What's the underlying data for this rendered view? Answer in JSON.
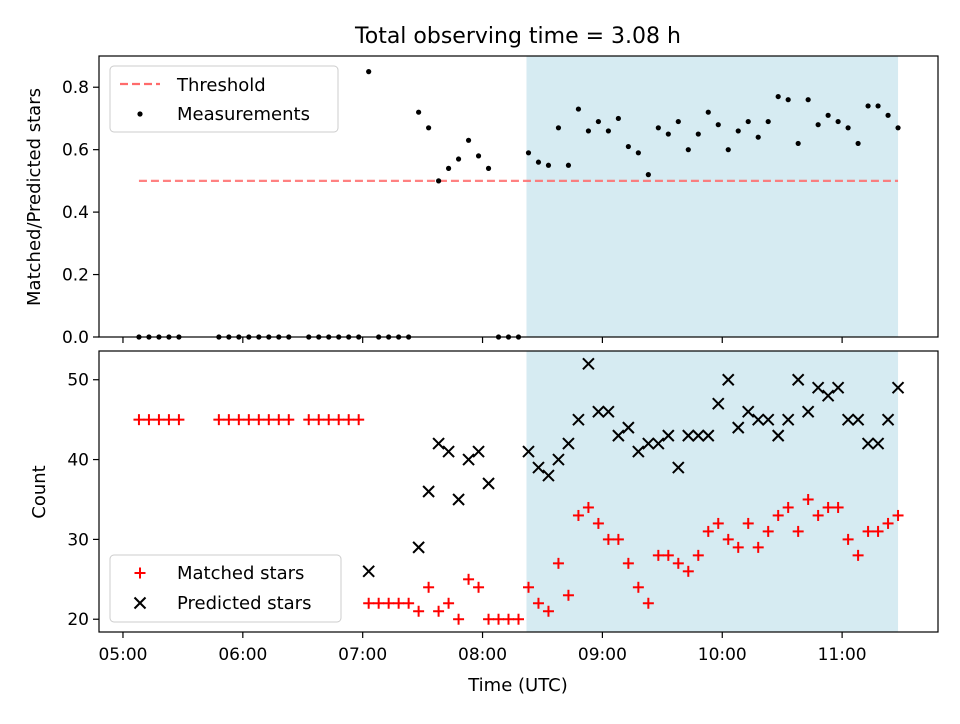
{
  "figure": {
    "title": "Total observing time = 3.08 h"
  },
  "chart_data": [
    {
      "type": "scatter",
      "panel": "top",
      "xlabel": "",
      "ylabel": "Matched/Predicted stars",
      "xlim": [
        "04:48",
        "11:48"
      ],
      "ylim": [
        0,
        0.9
      ],
      "yticks": [
        0.0,
        0.2,
        0.4,
        0.6,
        0.8
      ],
      "ytick_labels": [
        "0.0",
        "0.2",
        "0.4",
        "0.6",
        "0.8"
      ],
      "shaded_span": {
        "from": "08:22",
        "to": "11:28",
        "color": "#add8e6"
      },
      "legend_position": "upper left",
      "legend": [
        {
          "label": "Threshold",
          "style": "dashed-line",
          "color": "#ff6b6b"
        },
        {
          "label": "Measurements",
          "style": "dot",
          "color": "#000000"
        }
      ],
      "threshold": {
        "value": 0.5,
        "from": "05:08",
        "to": "11:28"
      },
      "measurements": {
        "x": [
          "05:08",
          "05:13",
          "05:18",
          "05:23",
          "05:28",
          "05:48",
          "05:53",
          "05:58",
          "06:03",
          "06:08",
          "06:13",
          "06:18",
          "06:23",
          "06:33",
          "06:38",
          "06:43",
          "06:48",
          "06:53",
          "06:58",
          "07:03",
          "07:08",
          "07:13",
          "07:18",
          "07:23",
          "07:28",
          "07:33",
          "07:38",
          "07:43",
          "07:48",
          "07:53",
          "07:58",
          "08:03",
          "08:08",
          "08:13",
          "08:18",
          "08:23",
          "08:28",
          "08:33",
          "08:38",
          "08:43",
          "08:48",
          "08:53",
          "08:58",
          "09:03",
          "09:08",
          "09:13",
          "09:18",
          "09:23",
          "09:28",
          "09:33",
          "09:38",
          "09:43",
          "09:48",
          "09:53",
          "09:58",
          "10:03",
          "10:08",
          "10:13",
          "10:18",
          "10:23",
          "10:28",
          "10:33",
          "10:38",
          "10:43",
          "10:48",
          "10:53",
          "10:58",
          "11:03",
          "11:08",
          "11:13",
          "11:18",
          "11:23",
          "11:28"
        ],
        "y": [
          0,
          0,
          0,
          0,
          0,
          0,
          0,
          0,
          0,
          0,
          0,
          0,
          0,
          0,
          0,
          0,
          0,
          0,
          0,
          0.85,
          0,
          0,
          0,
          0,
          0.72,
          0.67,
          0.5,
          0.54,
          0.57,
          0.63,
          0.58,
          0.54,
          0,
          0,
          0,
          0.59,
          0.56,
          0.55,
          0.67,
          0.55,
          0.73,
          0.66,
          0.69,
          0.66,
          0.7,
          0.61,
          0.59,
          0.52,
          0.67,
          0.65,
          0.69,
          0.6,
          0.65,
          0.72,
          0.68,
          0.6,
          0.66,
          0.69,
          0.64,
          0.69,
          0.77,
          0.76,
          0.62,
          0.76,
          0.68,
          0.71,
          0.69,
          0.67,
          0.62,
          0.74,
          0.74,
          0.71,
          0.67
        ]
      }
    },
    {
      "type": "scatter",
      "panel": "bottom",
      "xlabel": "Time (UTC)",
      "ylabel": "Count",
      "xlim": [
        "04:48",
        "11:48"
      ],
      "ylim": [
        18.4,
        53.6
      ],
      "yticks": [
        20,
        30,
        40,
        50
      ],
      "ytick_labels": [
        "20",
        "30",
        "40",
        "50"
      ],
      "xticks": [
        "05:00",
        "06:00",
        "07:00",
        "08:00",
        "09:00",
        "10:00",
        "11:00"
      ],
      "xtick_labels": [
        "05:00",
        "06:00",
        "07:00",
        "08:00",
        "09:00",
        "10:00",
        "11:00"
      ],
      "shaded_span": {
        "from": "08:22",
        "to": "11:28",
        "color": "#add8e6"
      },
      "legend_position": "lower left",
      "series": [
        {
          "name": "Matched stars",
          "marker": "plus",
          "color": "#ff0000",
          "x": [
            "05:08",
            "05:13",
            "05:18",
            "05:23",
            "05:28",
            "05:48",
            "05:53",
            "05:58",
            "06:03",
            "06:08",
            "06:13",
            "06:18",
            "06:23",
            "06:33",
            "06:38",
            "06:43",
            "06:48",
            "06:53",
            "06:58",
            "07:03",
            "07:08",
            "07:13",
            "07:18",
            "07:23",
            "07:28",
            "07:33",
            "07:38",
            "07:43",
            "07:48",
            "07:53",
            "07:58",
            "08:03",
            "08:08",
            "08:13",
            "08:18",
            "08:23",
            "08:28",
            "08:33",
            "08:38",
            "08:43",
            "08:48",
            "08:53",
            "08:58",
            "09:03",
            "09:08",
            "09:13",
            "09:18",
            "09:23",
            "09:28",
            "09:33",
            "09:38",
            "09:43",
            "09:48",
            "09:53",
            "09:58",
            "10:03",
            "10:08",
            "10:13",
            "10:18",
            "10:23",
            "10:28",
            "10:33",
            "10:38",
            "10:43",
            "10:48",
            "10:53",
            "10:58",
            "11:03",
            "11:08",
            "11:13",
            "11:18",
            "11:23",
            "11:28"
          ],
          "y": [
            45,
            45,
            45,
            45,
            45,
            45,
            45,
            45,
            45,
            45,
            45,
            45,
            45,
            45,
            45,
            45,
            45,
            45,
            45,
            22,
            22,
            22,
            22,
            22,
            21,
            24,
            21,
            22,
            20,
            25,
            24,
            20,
            20,
            20,
            20,
            24,
            22,
            21,
            27,
            23,
            33,
            34,
            32,
            30,
            30,
            27,
            24,
            22,
            28,
            28,
            27,
            26,
            28,
            31,
            32,
            30,
            29,
            32,
            29,
            31,
            33,
            34,
            31,
            35,
            33,
            34,
            34,
            30,
            28,
            31,
            31,
            32,
            33
          ]
        },
        {
          "name": "Predicted stars",
          "marker": "x",
          "color": "#000000",
          "x": [
            "07:03",
            "07:28",
            "07:33",
            "07:38",
            "07:43",
            "07:48",
            "07:53",
            "07:58",
            "08:03",
            "08:23",
            "08:28",
            "08:33",
            "08:38",
            "08:43",
            "08:48",
            "08:53",
            "08:58",
            "09:03",
            "09:08",
            "09:13",
            "09:18",
            "09:23",
            "09:28",
            "09:33",
            "09:38",
            "09:43",
            "09:48",
            "09:53",
            "09:58",
            "10:03",
            "10:08",
            "10:13",
            "10:18",
            "10:23",
            "10:28",
            "10:33",
            "10:38",
            "10:43",
            "10:48",
            "10:53",
            "10:58",
            "11:03",
            "11:08",
            "11:13",
            "11:18",
            "11:23",
            "11:28"
          ],
          "y": [
            26,
            29,
            36,
            42,
            41,
            35,
            40,
            41,
            37,
            41,
            39,
            38,
            40,
            42,
            45,
            52,
            46,
            46,
            43,
            44,
            41,
            42,
            42,
            43,
            39,
            43,
            43,
            43,
            47,
            50,
            44,
            46,
            45,
            45,
            43,
            45,
            50,
            46,
            49,
            48,
            49,
            45,
            45,
            42,
            42,
            45,
            49
          ]
        }
      ]
    }
  ]
}
